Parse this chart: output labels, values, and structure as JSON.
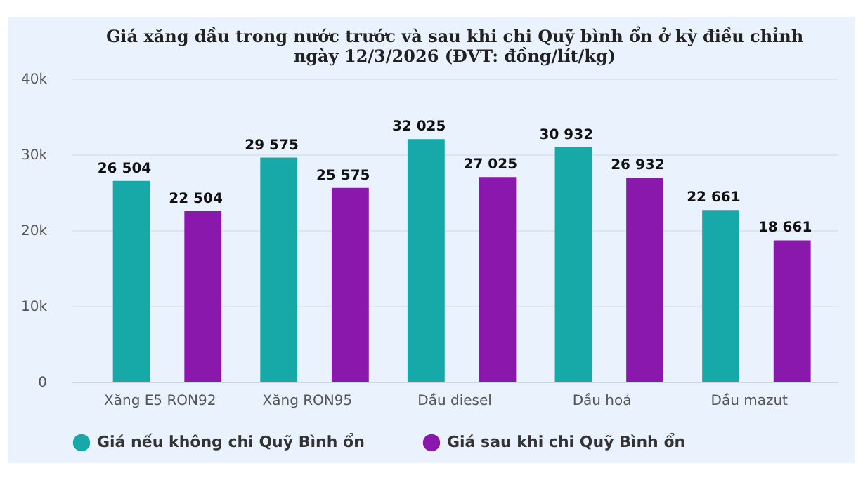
{
  "chart_data": {
    "type": "bar",
    "title": "Giá xăng dầu trong nước trước và sau khi chi Quỹ bình ổn ở kỳ điều chỉnh ngày 12/3/2026 (ĐVT: đồng/lít/kg)",
    "categories": [
      "Xăng E5 RON92",
      "Xăng RON95",
      "Dầu diesel",
      "Dầu hoả",
      "Dầu mazut"
    ],
    "series": [
      {
        "name": "Giá nếu không chi Quỹ Bình ổn",
        "color": "#17a8a8",
        "values": [
          26504,
          29575,
          32025,
          30932,
          22661
        ],
        "value_labels": [
          "26 504",
          "29 575",
          "32 025",
          "30 932",
          "22 661"
        ]
      },
      {
        "name": "Giá sau khi chi Quỹ Bình ổn",
        "color": "#8a18ad",
        "values": [
          22504,
          25575,
          27025,
          26932,
          18661
        ],
        "value_labels": [
          "22 504",
          "25 575",
          "27 025",
          "26 932",
          "18 661"
        ]
      }
    ],
    "ylim": [
      0,
      40000
    ],
    "yticks": [
      0,
      {
        "value": 10000,
        "label": "10k"
      },
      {
        "value": 20000,
        "label": "20k"
      },
      {
        "value": 30000,
        "label": "30k"
      },
      {
        "value": 40000,
        "label": "40k"
      }
    ],
    "grid": "y",
    "legend": "bottom",
    "marker": "circle"
  }
}
